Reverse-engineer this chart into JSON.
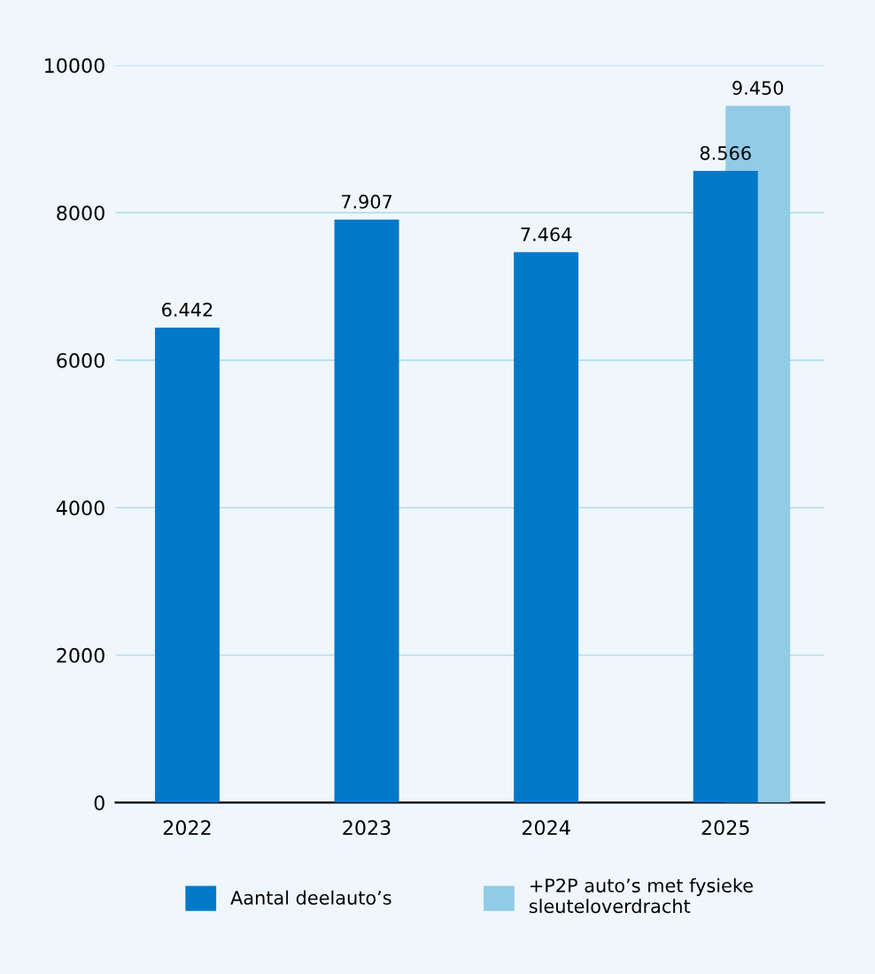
{
  "chart_data": {
    "type": "bar",
    "categories": [
      "2022",
      "2023",
      "2024",
      "2025"
    ],
    "series": [
      {
        "name": "Aantal deelauto’s",
        "color": "#0179c8",
        "values": [
          6442,
          7907,
          7464,
          8566
        ],
        "value_labels": [
          "6.442",
          "7.907",
          "7.464",
          "8.566"
        ]
      },
      {
        "name": "+P2P auto’s met fysieke sleuteloverdracht",
        "color": "#92cbe6",
        "values": [
          null,
          null,
          null,
          9450
        ],
        "value_labels": [
          null,
          null,
          null,
          "9.450"
        ]
      }
    ],
    "ylim": [
      0,
      10000
    ],
    "yticks": [
      0,
      2000,
      4000,
      6000,
      8000,
      10000
    ],
    "grid": "y",
    "legend": "bottom"
  }
}
